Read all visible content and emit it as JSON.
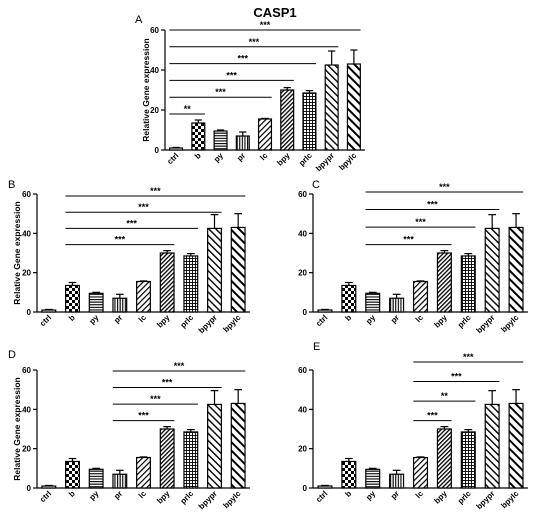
{
  "figure": {
    "title": "CASP1"
  },
  "chart_data": [
    {
      "panel": "A",
      "type": "bar",
      "ylabel": "Relative Gene expression",
      "ylim": [
        0,
        60
      ],
      "yticks": [
        0,
        20,
        40,
        60
      ],
      "categories": [
        "ctrl",
        "b",
        "py",
        "pr",
        "lc",
        "bpy",
        "prlc",
        "bpypr",
        "bpylc"
      ],
      "values": [
        1,
        13.5,
        9.5,
        7,
        15.5,
        30,
        28.5,
        42.5,
        43
      ],
      "errors": [
        0.3,
        1.5,
        0.5,
        2,
        0.3,
        1.2,
        1.2,
        7,
        7
      ],
      "comparisons": [
        {
          "from": "ctrl",
          "to": "b",
          "label": "**"
        },
        {
          "from": "ctrl",
          "to": "lc",
          "label": "***"
        },
        {
          "from": "ctrl",
          "to": "bpy",
          "label": "***"
        },
        {
          "from": "ctrl",
          "to": "prlc",
          "label": "***"
        },
        {
          "from": "ctrl",
          "to": "bpypr",
          "label": "***"
        },
        {
          "from": "ctrl",
          "to": "bpylc",
          "label": "***"
        }
      ]
    },
    {
      "panel": "B",
      "type": "bar",
      "ylabel": "Relative Gene expression",
      "ylim": [
        0,
        60
      ],
      "yticks": [
        0,
        20,
        40,
        60
      ],
      "categories": [
        "ctrl",
        "b",
        "py",
        "pr",
        "lc",
        "bpy",
        "prlc",
        "bpypr",
        "bpylc"
      ],
      "values": [
        1,
        13.5,
        9.5,
        7,
        15.5,
        30,
        28.5,
        42.5,
        43
      ],
      "errors": [
        0.3,
        1.5,
        0.5,
        2,
        0.3,
        1.2,
        1.2,
        7,
        7
      ],
      "comparisons": [
        {
          "from": "b",
          "to": "bpy",
          "label": "***"
        },
        {
          "from": "b",
          "to": "prlc",
          "label": "***"
        },
        {
          "from": "b",
          "to": "bpypr",
          "label": "***"
        },
        {
          "from": "b",
          "to": "bpylc",
          "label": "***"
        }
      ]
    },
    {
      "panel": "C",
      "type": "bar",
      "ylabel": "",
      "ylim": [
        0,
        60
      ],
      "yticks": [
        0,
        20,
        40,
        60
      ],
      "categories": [
        "ctrl",
        "b",
        "py",
        "pr",
        "lc",
        "bpy",
        "prlc",
        "bpypr",
        "bpylc"
      ],
      "values": [
        1,
        13.5,
        9.5,
        7,
        15.5,
        30,
        28.5,
        42.5,
        43
      ],
      "errors": [
        0.3,
        1.5,
        0.5,
        2,
        0.3,
        1.2,
        1.2,
        7,
        7
      ],
      "comparisons": [
        {
          "from": "py",
          "to": "bpy",
          "label": "***"
        },
        {
          "from": "py",
          "to": "prlc",
          "label": "***"
        },
        {
          "from": "py",
          "to": "bpypr",
          "label": "***"
        },
        {
          "from": "py",
          "to": "bpylc",
          "label": "***"
        }
      ]
    },
    {
      "panel": "D",
      "type": "bar",
      "ylabel": "Relative Gene expression",
      "ylim": [
        0,
        60
      ],
      "yticks": [
        0,
        20,
        40,
        60
      ],
      "categories": [
        "ctrl",
        "b",
        "py",
        "pr",
        "lc",
        "bpy",
        "prlc",
        "bpypr",
        "bpylc"
      ],
      "values": [
        1,
        13.5,
        9.5,
        7,
        15.5,
        30,
        28.5,
        42.5,
        43
      ],
      "errors": [
        0.3,
        1.5,
        0.5,
        2,
        0.3,
        1.2,
        1.2,
        7,
        7
      ],
      "comparisons": [
        {
          "from": "pr",
          "to": "bpy",
          "label": "***"
        },
        {
          "from": "pr",
          "to": "prlc",
          "label": "***"
        },
        {
          "from": "pr",
          "to": "bpypr",
          "label": "***"
        },
        {
          "from": "pr",
          "to": "bpylc",
          "label": "***"
        }
      ]
    },
    {
      "panel": "E",
      "type": "bar",
      "ylabel": "",
      "ylim": [
        0,
        60
      ],
      "yticks": [
        0,
        20,
        40,
        60
      ],
      "categories": [
        "ctrl",
        "b",
        "py",
        "pr",
        "lc",
        "bpy",
        "prlc",
        "bpypr",
        "bpylc"
      ],
      "values": [
        1,
        13.5,
        9.5,
        7,
        15.5,
        30,
        28.5,
        42.5,
        43
      ],
      "errors": [
        0.3,
        1.5,
        0.5,
        2,
        0.3,
        1.2,
        1.2,
        7,
        7
      ],
      "comparisons": [
        {
          "from": "lc",
          "to": "bpy",
          "label": "***"
        },
        {
          "from": "lc",
          "to": "prlc",
          "label": "**"
        },
        {
          "from": "lc",
          "to": "bpypr",
          "label": "***"
        },
        {
          "from": "lc",
          "to": "bpylc",
          "label": "***"
        }
      ]
    }
  ]
}
